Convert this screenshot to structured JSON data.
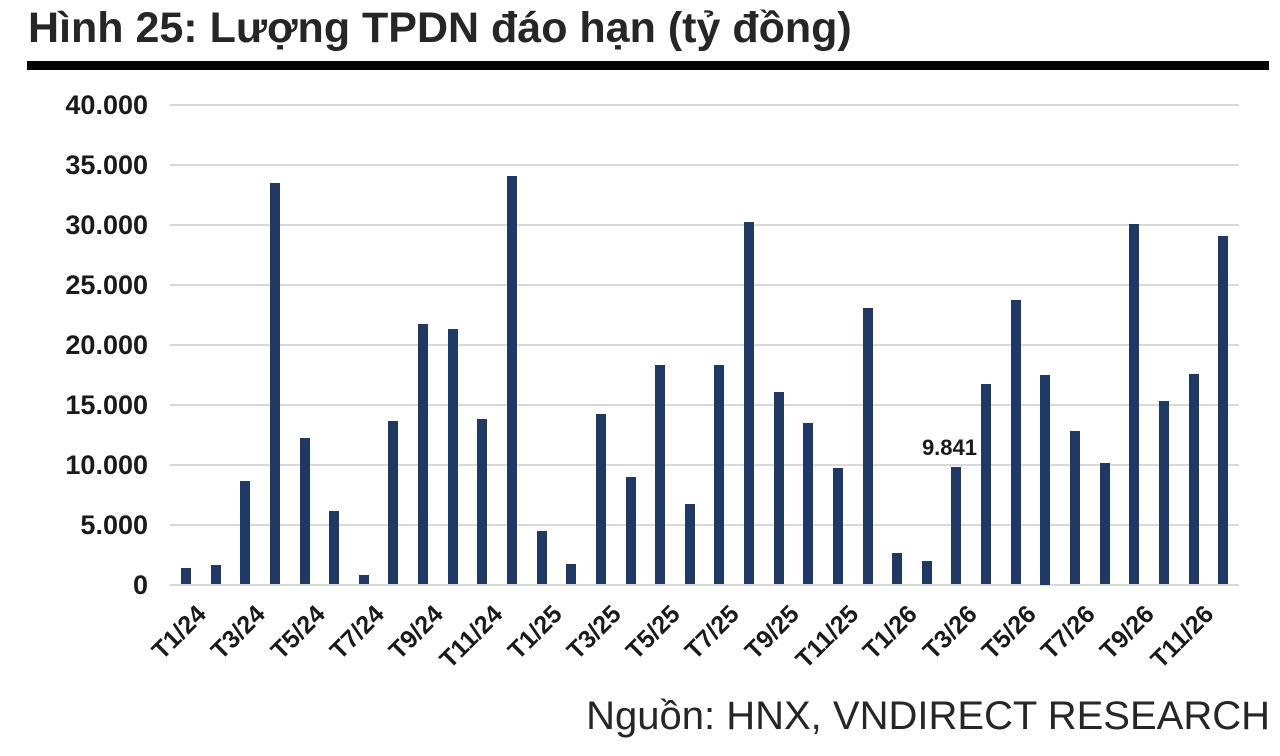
{
  "figure": {
    "title": "Hình 25: Lượng TPDN đáo hạn (tỷ đồng)",
    "source": "Nguồn: HNX, VNDIRECT RESEARCH"
  },
  "colors": {
    "bar": "#1f3864",
    "gridline": "#d9d9d9",
    "title_rule": "#000000",
    "text": "#262626"
  },
  "chart_data": {
    "type": "bar",
    "title": "Hình 25: Lượng TPDN đáo hạn (tỷ đồng)",
    "xlabel": "",
    "ylabel": "tỷ đồng",
    "ylim": [
      0,
      40000
    ],
    "grid": "horizontal",
    "legend": "none",
    "categories": [
      "T1/24",
      "T2/24",
      "T3/24",
      "T4/24",
      "T5/24",
      "T6/24",
      "T7/24",
      "T8/24",
      "T9/24",
      "T10/24",
      "T11/24",
      "T12/24",
      "T1/25",
      "T2/25",
      "T3/25",
      "T4/25",
      "T5/25",
      "T6/25",
      "T7/25",
      "T8/25",
      "T9/25",
      "T10/25",
      "T11/25",
      "T12/25",
      "T1/26",
      "T2/26",
      "T3/26",
      "T4/26",
      "T5/26",
      "T6/26",
      "T7/26",
      "T8/26",
      "T9/26",
      "T10/26",
      "T11/26",
      "T12/26"
    ],
    "values": [
      1400,
      1600,
      8600,
      33500,
      12200,
      6100,
      800,
      13600,
      21700,
      21300,
      13800,
      34100,
      4500,
      1700,
      14200,
      9000,
      18300,
      6700,
      18300,
      30200,
      16100,
      13500,
      9700,
      23100,
      2600,
      2000,
      9841,
      16700,
      23700,
      17500,
      12800,
      10100,
      30100,
      15300,
      17600,
      29100
    ],
    "x_tick_labels": [
      "T1/24",
      "T3/24",
      "T5/24",
      "T7/24",
      "T9/24",
      "T11/24",
      "T1/25",
      "T3/25",
      "T5/25",
      "T7/25",
      "T9/25",
      "T11/25",
      "T1/26",
      "T3/26",
      "T5/26",
      "T7/26",
      "T9/26",
      "T11/26"
    ],
    "x_tick_step": 2,
    "y_ticks": [
      {
        "value": 40000,
        "label": "40.000"
      },
      {
        "value": 35000,
        "label": "35.000"
      },
      {
        "value": 30000,
        "label": "30.000"
      },
      {
        "value": 25000,
        "label": "25.000"
      },
      {
        "value": 20000,
        "label": "20.000"
      },
      {
        "value": 15000,
        "label": "15.000"
      },
      {
        "value": 10000,
        "label": "10.000"
      },
      {
        "value": 5000,
        "label": "5.000"
      },
      {
        "value": 0,
        "label": "0"
      }
    ],
    "data_labels": [
      {
        "category": "T3/26",
        "value": 9841,
        "text": "9.841"
      }
    ]
  }
}
